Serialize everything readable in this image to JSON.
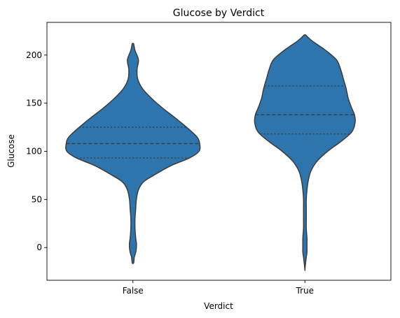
{
  "chart_data": {
    "type": "violin",
    "title": "Glucose by Verdict",
    "xlabel": "Verdict",
    "ylabel": "Glucose",
    "categories": [
      "False",
      "True"
    ],
    "ylim": [
      -34,
      234
    ],
    "yticks": [
      0,
      50,
      100,
      150,
      200
    ],
    "grid": false,
    "inner": "quartile",
    "fill_color": "#2e75ad",
    "edge_color": "#3b3b3b",
    "violins": [
      {
        "category": "False",
        "quartiles": {
          "q1": 93,
          "median": 108,
          "q3": 125
        },
        "density_profile": [
          [
            212,
            1
          ],
          [
            205,
            3
          ],
          [
            195,
            8
          ],
          [
            185,
            6
          ],
          [
            175,
            7
          ],
          [
            165,
            14
          ],
          [
            155,
            27
          ],
          [
            145,
            43
          ],
          [
            135,
            61
          ],
          [
            125,
            78
          ],
          [
            115,
            93
          ],
          [
            108,
            97
          ],
          [
            100,
            96
          ],
          [
            93,
            82
          ],
          [
            85,
            55
          ],
          [
            75,
            30
          ],
          [
            68,
            15
          ],
          [
            60,
            8
          ],
          [
            50,
            5
          ],
          [
            40,
            4
          ],
          [
            30,
            3
          ],
          [
            20,
            3
          ],
          [
            10,
            4
          ],
          [
            5,
            5
          ],
          [
            0,
            5
          ],
          [
            -5,
            4
          ],
          [
            -10,
            2
          ],
          [
            -16,
            1
          ]
        ]
      },
      {
        "category": "True",
        "quartiles": {
          "q1": 118,
          "median": 138,
          "q3": 168
        },
        "density_profile": [
          [
            221,
            1
          ],
          [
            215,
            10
          ],
          [
            205,
            30
          ],
          [
            195,
            46
          ],
          [
            185,
            52
          ],
          [
            175,
            56
          ],
          [
            165,
            60
          ],
          [
            155,
            63
          ],
          [
            145,
            68
          ],
          [
            138,
            72
          ],
          [
            130,
            73
          ],
          [
            120,
            68
          ],
          [
            110,
            52
          ],
          [
            100,
            33
          ],
          [
            90,
            18
          ],
          [
            80,
            9
          ],
          [
            70,
            5
          ],
          [
            60,
            3
          ],
          [
            50,
            2
          ],
          [
            40,
            2
          ],
          [
            30,
            2
          ],
          [
            20,
            2
          ],
          [
            10,
            3
          ],
          [
            5,
            3
          ],
          [
            0,
            3
          ],
          [
            -5,
            3
          ],
          [
            -10,
            2
          ],
          [
            -16,
            1
          ],
          [
            -23,
            0
          ]
        ]
      }
    ]
  }
}
